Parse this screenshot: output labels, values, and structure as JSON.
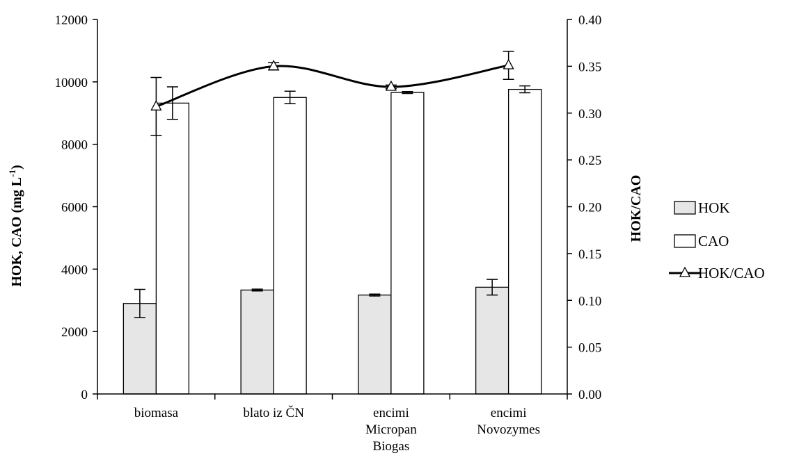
{
  "chart_data": {
    "type": "bar",
    "title": "",
    "categories": [
      [
        "biomasa"
      ],
      [
        "blato iz ČN"
      ],
      [
        "encimi",
        "Micropan",
        "Biogas"
      ],
      [
        "encimi",
        "Novozymes"
      ]
    ],
    "ylabel": "HOK, CAO (mg L",
    "ylabel_sup": "-1",
    "ylabel_close": ")",
    "y2label": "HOK/CAO",
    "ylim": [
      0,
      12000
    ],
    "y2lim": [
      0,
      0.4
    ],
    "yticks": [
      "0",
      "2000",
      "4000",
      "6000",
      "8000",
      "10000",
      "12000"
    ],
    "y2ticks": [
      "0.00",
      "0.05",
      "0.10",
      "0.15",
      "0.20",
      "0.25",
      "0.30",
      "0.35",
      "0.40"
    ],
    "series": [
      {
        "name": "HOK",
        "kind": "bar",
        "axis": "left",
        "color": "#e6e6e6",
        "values": [
          2900,
          3330,
          3170,
          3420
        ],
        "errors": [
          450,
          30,
          30,
          250
        ]
      },
      {
        "name": "CAO",
        "kind": "bar",
        "axis": "left",
        "color": "#ffffff",
        "values": [
          9320,
          9500,
          9660,
          9760
        ],
        "errors": [
          520,
          200,
          30,
          110
        ]
      },
      {
        "name": "HOK/CAO",
        "kind": "line",
        "axis": "right",
        "color": "#000000",
        "marker": "triangle",
        "values": [
          0.307,
          0.35,
          0.328,
          0.351
        ],
        "errors": [
          0.031,
          0.004,
          0.002,
          0.015
        ]
      }
    ],
    "legend": [
      "HOK",
      "CAO",
      "HOK/CAO"
    ],
    "legend_position": "right",
    "grid": false
  }
}
